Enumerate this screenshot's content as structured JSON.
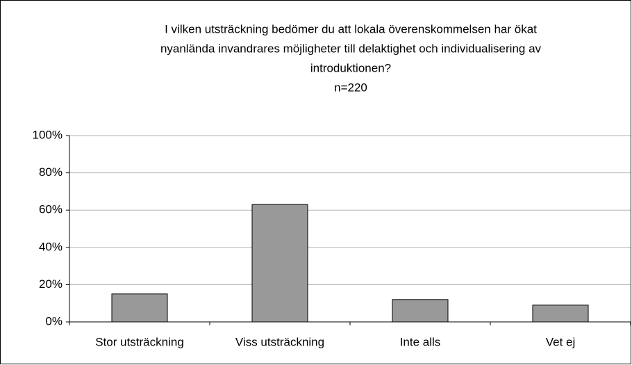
{
  "chart_data": {
    "type": "bar",
    "title": [
      "I vilken utsträckning bedömer du att lokala överenskommelsen har ökat",
      "nyanlända invandrares möjligheter till delaktighet och individualisering av",
      "introduktionen?"
    ],
    "subtitle": "n=220",
    "categories": [
      "Stor utsträckning",
      "Viss utsträckning",
      "Inte alls",
      "Vet ej"
    ],
    "values": [
      15,
      63,
      12,
      9
    ],
    "color": "#999999",
    "ylim": [
      0,
      100
    ],
    "yticks": [
      {
        "value": 0,
        "label": "0%"
      },
      {
        "value": 20,
        "label": "20%"
      },
      {
        "value": 40,
        "label": "40%"
      },
      {
        "value": 60,
        "label": "60%"
      },
      {
        "value": 80,
        "label": "80%"
      },
      {
        "value": 100,
        "label": "100%"
      }
    ],
    "grid": true
  }
}
